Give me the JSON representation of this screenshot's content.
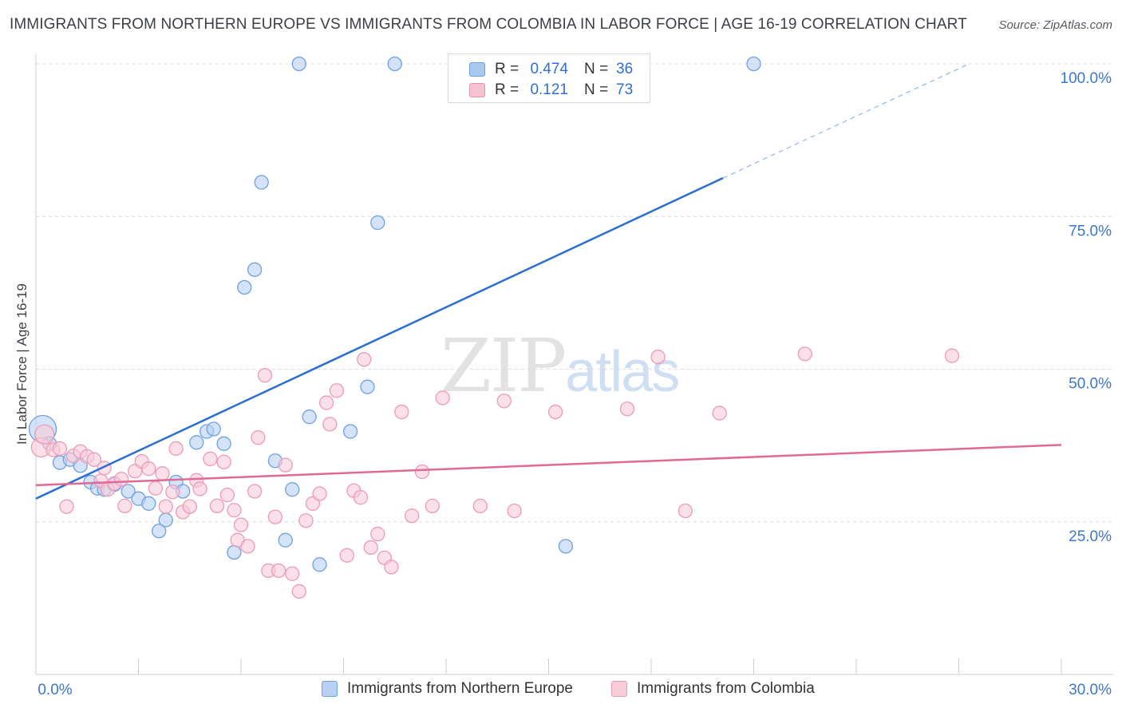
{
  "title": "IMMIGRANTS FROM NORTHERN EUROPE VS IMMIGRANTS FROM COLOMBIA IN LABOR FORCE | AGE 16-19 CORRELATION CHART",
  "source": "Source: ZipAtlas.com",
  "watermark": {
    "zip": "ZIP",
    "atlas": "atlas"
  },
  "legend": {
    "r_label": "R =",
    "n_label": "N =",
    "rows": [
      {
        "r": "0.474",
        "n": "36",
        "color": "#a9c8f0",
        "border": "#6a9de0"
      },
      {
        "r": "0.121",
        "n": "73",
        "color": "#f7c2d2",
        "border": "#e890ad"
      }
    ]
  },
  "chart_data": {
    "type": "scatter",
    "title": "IMMIGRANTS FROM NORTHERN EUROPE VS IMMIGRANTS FROM COLOMBIA IN LABOR FORCE | AGE 16-19 CORRELATION CHART",
    "xlabel": "",
    "ylabel": "In Labor Force | Age 16-19",
    "xlim": [
      0,
      30
    ],
    "ylim": [
      0,
      100
    ],
    "x_tick_labels": [
      "0.0%",
      "30.0%"
    ],
    "y_ticks": [
      25,
      50,
      75,
      100
    ],
    "y_tick_labels": [
      "25.0%",
      "50.0%",
      "75.0%",
      "100.0%"
    ],
    "series": [
      {
        "name": "Immigrants from Northern Europe",
        "color": "#6fa0e0",
        "fill": "#b7d1f3",
        "trend_color": "#2a6fd0",
        "trend": {
          "x0": 0,
          "y0": 28.8,
          "x1": 20.1,
          "y1": 81.3,
          "dash_x_end": 27.3,
          "dash_y_end": 100
        },
        "points": [
          [
            0.2,
            40.2
          ],
          [
            0.4,
            37.8
          ],
          [
            0.7,
            34.7
          ],
          [
            1.0,
            35.2
          ],
          [
            1.3,
            34.2
          ],
          [
            1.6,
            31.5
          ],
          [
            1.8,
            30.5
          ],
          [
            2.0,
            30.3
          ],
          [
            2.3,
            31.1
          ],
          [
            2.7,
            30.0
          ],
          [
            3.0,
            28.8
          ],
          [
            3.3,
            28.0
          ],
          [
            3.6,
            23.5
          ],
          [
            3.8,
            25.3
          ],
          [
            4.1,
            31.5
          ],
          [
            4.3,
            30.0
          ],
          [
            4.7,
            38.0
          ],
          [
            5.0,
            39.8
          ],
          [
            5.2,
            40.2
          ],
          [
            5.5,
            37.8
          ],
          [
            5.8,
            20.0
          ],
          [
            6.1,
            63.4
          ],
          [
            6.4,
            66.3
          ],
          [
            6.6,
            80.6
          ],
          [
            7.0,
            35.0
          ],
          [
            7.3,
            22.0
          ],
          [
            7.5,
            30.3
          ],
          [
            7.7,
            100.0
          ],
          [
            8.0,
            42.2
          ],
          [
            8.3,
            18.0
          ],
          [
            9.2,
            39.8
          ],
          [
            9.7,
            47.1
          ],
          [
            10.0,
            74.0
          ],
          [
            10.5,
            100.0
          ],
          [
            15.5,
            21.0
          ],
          [
            21.0,
            100.0
          ]
        ]
      },
      {
        "name": "Immigrants from Colombia",
        "color": "#ec9ab6",
        "fill": "#f8ccd9",
        "trend_color": "#e06a95",
        "trend": {
          "x0": 0,
          "y0": 31.0,
          "x1": 30,
          "y1": 37.6
        },
        "points": [
          [
            0.15,
            37.2
          ],
          [
            0.25,
            39.3
          ],
          [
            0.5,
            36.8
          ],
          [
            0.7,
            37.0
          ],
          [
            0.9,
            27.5
          ],
          [
            1.1,
            35.8
          ],
          [
            1.3,
            36.5
          ],
          [
            1.5,
            35.7
          ],
          [
            1.7,
            35.2
          ],
          [
            1.9,
            31.7
          ],
          [
            2.1,
            30.3
          ],
          [
            2.3,
            31.3
          ],
          [
            2.5,
            32.0
          ],
          [
            2.6,
            27.6
          ],
          [
            2.9,
            33.3
          ],
          [
            3.1,
            34.9
          ],
          [
            3.3,
            33.7
          ],
          [
            3.5,
            30.5
          ],
          [
            3.7,
            32.9
          ],
          [
            3.8,
            27.5
          ],
          [
            4.0,
            29.9
          ],
          [
            4.1,
            37.0
          ],
          [
            4.3,
            26.6
          ],
          [
            4.5,
            27.5
          ],
          [
            4.7,
            31.8
          ],
          [
            4.8,
            30.4
          ],
          [
            5.1,
            35.3
          ],
          [
            5.3,
            27.6
          ],
          [
            5.5,
            34.8
          ],
          [
            5.6,
            29.4
          ],
          [
            5.8,
            26.9
          ],
          [
            5.9,
            22.0
          ],
          [
            6.0,
            24.5
          ],
          [
            6.2,
            21.0
          ],
          [
            6.5,
            38.8
          ],
          [
            6.7,
            49.0
          ],
          [
            6.8,
            17.0
          ],
          [
            7.0,
            25.8
          ],
          [
            7.1,
            17.0
          ],
          [
            7.3,
            34.3
          ],
          [
            7.5,
            16.5
          ],
          [
            7.7,
            13.6
          ],
          [
            7.9,
            25.2
          ],
          [
            8.1,
            28.0
          ],
          [
            8.3,
            29.6
          ],
          [
            8.5,
            44.5
          ],
          [
            8.6,
            41.0
          ],
          [
            8.8,
            46.5
          ],
          [
            9.1,
            19.5
          ],
          [
            9.3,
            30.1
          ],
          [
            9.5,
            29.0
          ],
          [
            9.6,
            51.6
          ],
          [
            9.8,
            20.8
          ],
          [
            10.0,
            23.0
          ],
          [
            10.2,
            19.1
          ],
          [
            10.4,
            17.6
          ],
          [
            10.7,
            43.0
          ],
          [
            11.0,
            26.0
          ],
          [
            11.3,
            33.2
          ],
          [
            11.6,
            27.6
          ],
          [
            11.9,
            45.3
          ],
          [
            13.0,
            27.6
          ],
          [
            13.7,
            44.8
          ],
          [
            14.0,
            26.8
          ],
          [
            15.2,
            43.0
          ],
          [
            17.3,
            43.5
          ],
          [
            18.2,
            52.0
          ],
          [
            19.0,
            26.8
          ],
          [
            20.0,
            42.8
          ],
          [
            22.5,
            52.5
          ],
          [
            26.8,
            52.2
          ],
          [
            2.0,
            33.8
          ],
          [
            6.4,
            30.0
          ]
        ]
      }
    ]
  },
  "bottom_legend": [
    {
      "label": "Immigrants from Northern Europe",
      "color": "#b7d1f3",
      "border": "#6fa0e0"
    },
    {
      "label": "Immigrants from Colombia",
      "color": "#f8ccd9",
      "border": "#ec9ab6"
    }
  ]
}
